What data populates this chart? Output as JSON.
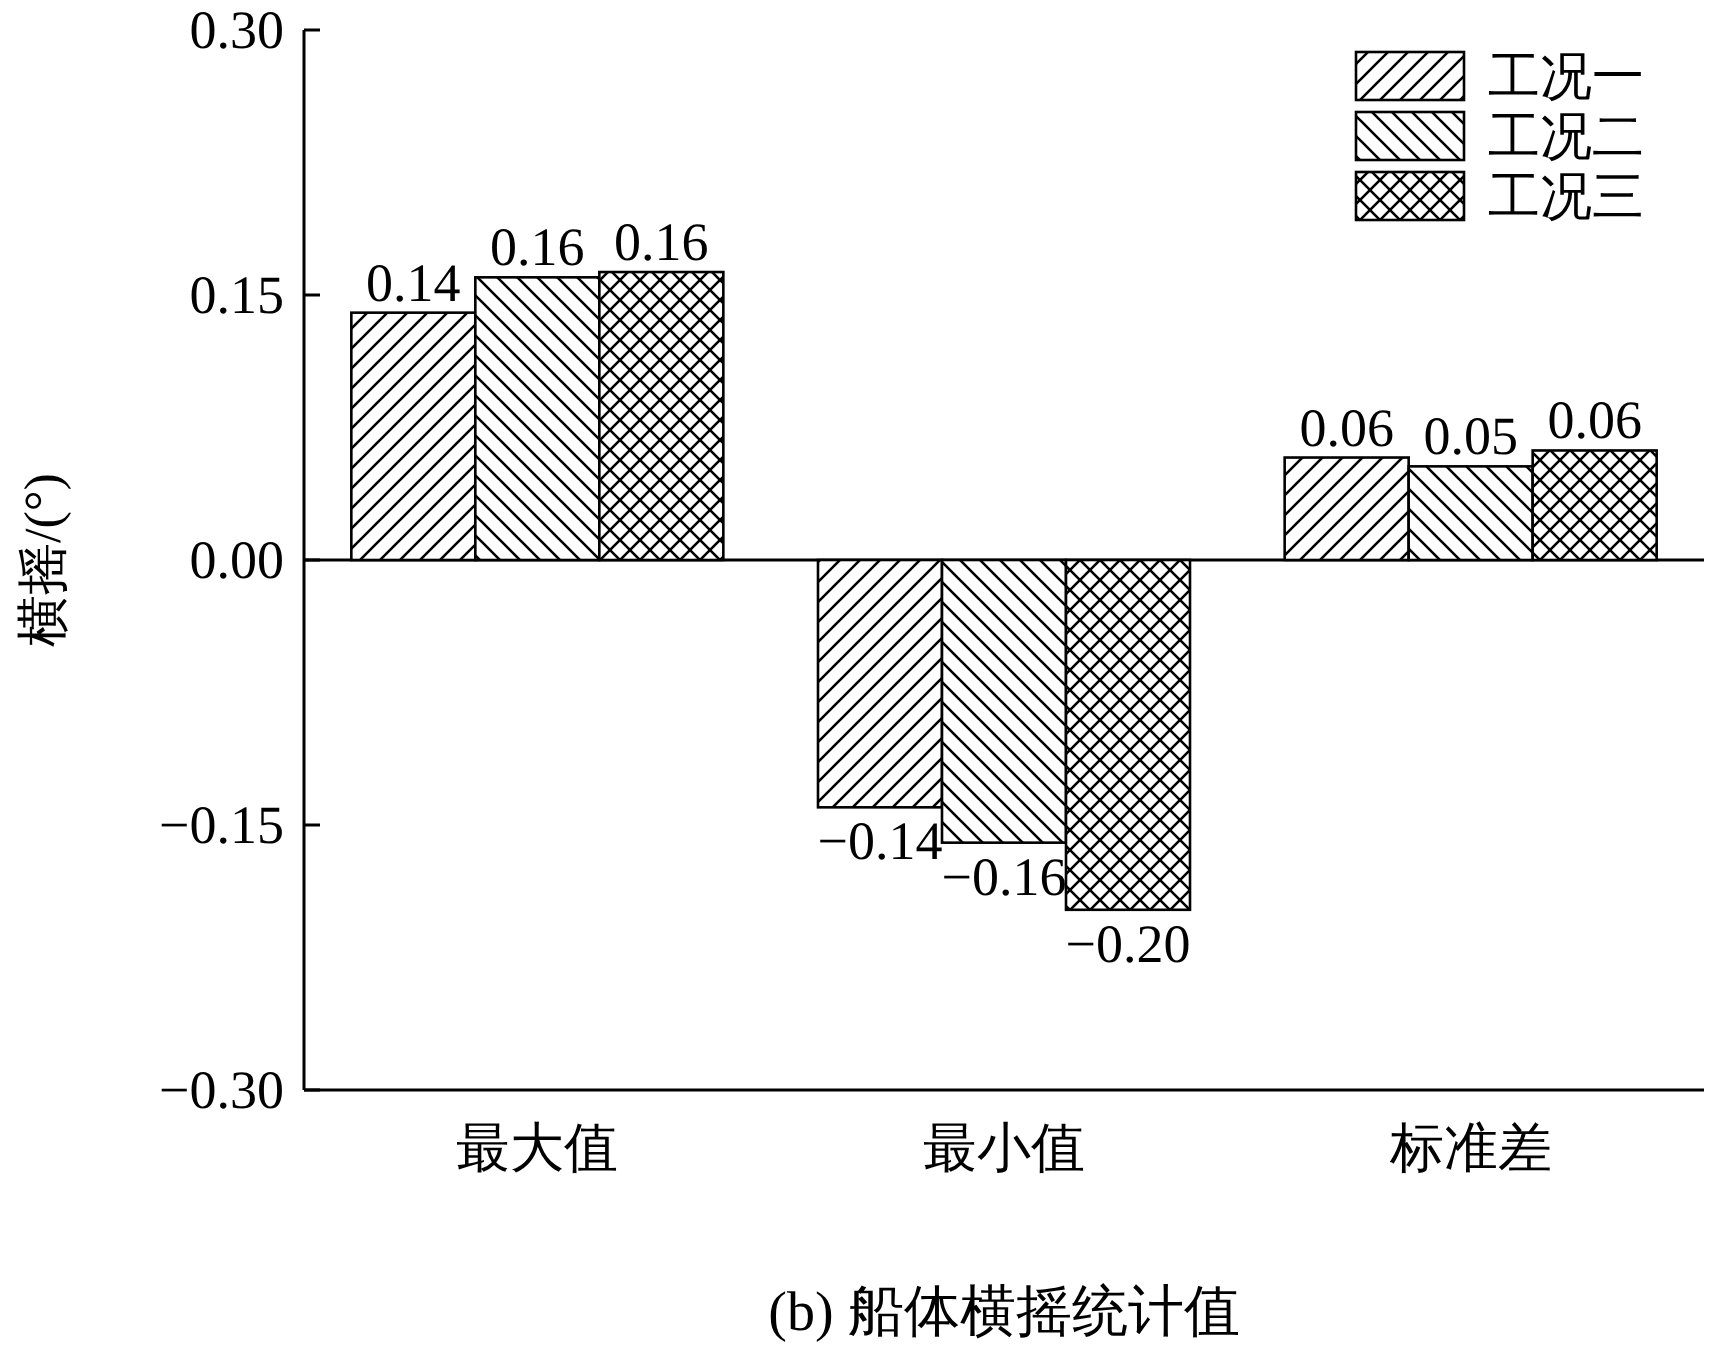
{
  "chart_data": {
    "type": "bar",
    "title": "(b) 船体横摇统计值",
    "ylabel": "横摇/(°)",
    "categories": [
      "最大值",
      "最小值",
      "标准差"
    ],
    "series": [
      {
        "name": "工况一",
        "color": "#000000",
        "values": [
          0.14,
          -0.14,
          0.058
        ],
        "value_labels": [
          "0.14",
          "−0.14",
          "0.06"
        ]
      },
      {
        "name": "工况二",
        "color": "#000000",
        "values": [
          0.16,
          -0.16,
          0.053
        ],
        "value_labels": [
          "0.16",
          "−0.16",
          "0.05"
        ]
      },
      {
        "name": "工况三",
        "color": "#000000",
        "values": [
          0.163,
          -0.198,
          0.062
        ],
        "value_labels": [
          "0.16",
          "−0.20",
          "0.06"
        ]
      }
    ],
    "ylim": [
      -0.3,
      0.3
    ],
    "yticks": [
      {
        "value": 0.3,
        "label": "0.30"
      },
      {
        "value": 0.15,
        "label": "0.15"
      },
      {
        "value": 0,
        "label": "0.00"
      },
      {
        "value": -0.15,
        "label": "−0.15"
      },
      {
        "value": -0.3,
        "label": "−0.30"
      }
    ],
    "legend": "top right"
  }
}
